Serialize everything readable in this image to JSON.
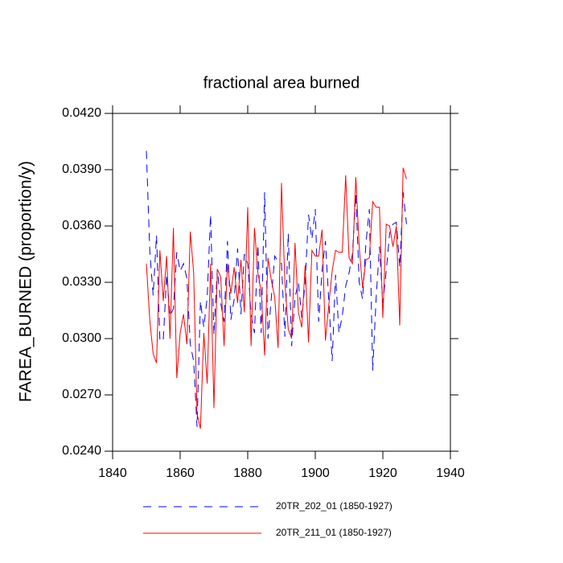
{
  "chart_data": {
    "type": "line",
    "title": "fractional area burned",
    "y_label": "FAREA_BURNED  (proportion/y)",
    "x": [
      1850,
      1851,
      1852,
      1853,
      1854,
      1855,
      1856,
      1857,
      1858,
      1859,
      1860,
      1861,
      1862,
      1863,
      1864,
      1865,
      1866,
      1867,
      1868,
      1869,
      1870,
      1871,
      1872,
      1873,
      1874,
      1875,
      1876,
      1877,
      1878,
      1879,
      1880,
      1881,
      1882,
      1883,
      1884,
      1885,
      1886,
      1887,
      1888,
      1889,
      1890,
      1891,
      1892,
      1893,
      1894,
      1895,
      1896,
      1897,
      1898,
      1899,
      1900,
      1901,
      1902,
      1903,
      1904,
      1905,
      1906,
      1907,
      1908,
      1909,
      1910,
      1911,
      1912,
      1913,
      1914,
      1915,
      1916,
      1917,
      1918,
      1919,
      1920,
      1921,
      1922,
      1923,
      1924,
      1925,
      1926,
      1927
    ],
    "series": [
      {
        "name": "20TR_202_01 (1850-1927)",
        "color": "#0000ff",
        "dashed": true,
        "values": [
          0.04,
          0.0347,
          0.0323,
          0.0355,
          0.0299,
          0.0299,
          0.0334,
          0.0312,
          0.0316,
          0.0346,
          0.0336,
          0.034,
          0.0332,
          0.0297,
          0.0288,
          0.0253,
          0.032,
          0.0306,
          0.0322,
          0.0366,
          0.0302,
          0.0337,
          0.0319,
          0.0309,
          0.0352,
          0.031,
          0.0321,
          0.0348,
          0.0313,
          0.0345,
          0.034,
          0.0313,
          0.0303,
          0.035,
          0.0303,
          0.0378,
          0.03,
          0.0322,
          0.0344,
          0.0341,
          0.034,
          0.0301,
          0.0356,
          0.0296,
          0.0322,
          0.033,
          0.0311,
          0.033,
          0.0366,
          0.0353,
          0.0369,
          0.0309,
          0.0336,
          0.0352,
          0.032,
          0.0288,
          0.0334,
          0.0303,
          0.0312,
          0.0328,
          0.0335,
          0.0345,
          0.0377,
          0.033,
          0.0321,
          0.0351,
          0.0369,
          0.0283,
          0.0321,
          0.0349,
          0.0319,
          0.0336,
          0.0356,
          0.0361,
          0.0362,
          0.0338,
          0.0378,
          0.0361
        ]
      },
      {
        "name": "20TR_211_01 (1850-1927)",
        "color": "#ff0000",
        "dashed": false,
        "values": [
          0.034,
          0.031,
          0.0292,
          0.0287,
          0.0347,
          0.032,
          0.0344,
          0.03,
          0.0359,
          0.0279,
          0.0303,
          0.0313,
          0.0297,
          0.0357,
          0.0335,
          0.026,
          0.0252,
          0.0303,
          0.0276,
          0.034,
          0.0263,
          0.0337,
          0.0333,
          0.0296,
          0.034,
          0.0324,
          0.0338,
          0.0319,
          0.0342,
          0.0314,
          0.037,
          0.0296,
          0.0359,
          0.0335,
          0.0325,
          0.0291,
          0.0343,
          0.0331,
          0.0322,
          0.0295,
          0.0383,
          0.033,
          0.0305,
          0.03,
          0.0351,
          0.0314,
          0.0306,
          0.0339,
          0.0298,
          0.0347,
          0.0344,
          0.0344,
          0.0358,
          0.0299,
          0.0318,
          0.0336,
          0.0347,
          0.0346,
          0.0346,
          0.0387,
          0.0343,
          0.034,
          0.0386,
          0.0349,
          0.0327,
          0.0342,
          0.0343,
          0.0373,
          0.037,
          0.037,
          0.0311,
          0.0361,
          0.036,
          0.0349,
          0.036,
          0.0307,
          0.0391,
          0.0385
        ]
      }
    ],
    "xlim": [
      1840,
      1940
    ],
    "xticks": [
      1840,
      1860,
      1880,
      1900,
      1920,
      1940
    ],
    "ylim": [
      0.024,
      0.042
    ],
    "yticks": [
      {
        "value": 0.024,
        "label": "0.0240"
      },
      {
        "value": 0.027,
        "label": "0.0270"
      },
      {
        "value": 0.03,
        "label": "0.0300"
      },
      {
        "value": 0.033,
        "label": "0.0330"
      },
      {
        "value": 0.036,
        "label": "0.0360"
      },
      {
        "value": 0.039,
        "label": "0.0390"
      },
      {
        "value": 0.042,
        "label": "0.0420"
      }
    ]
  }
}
